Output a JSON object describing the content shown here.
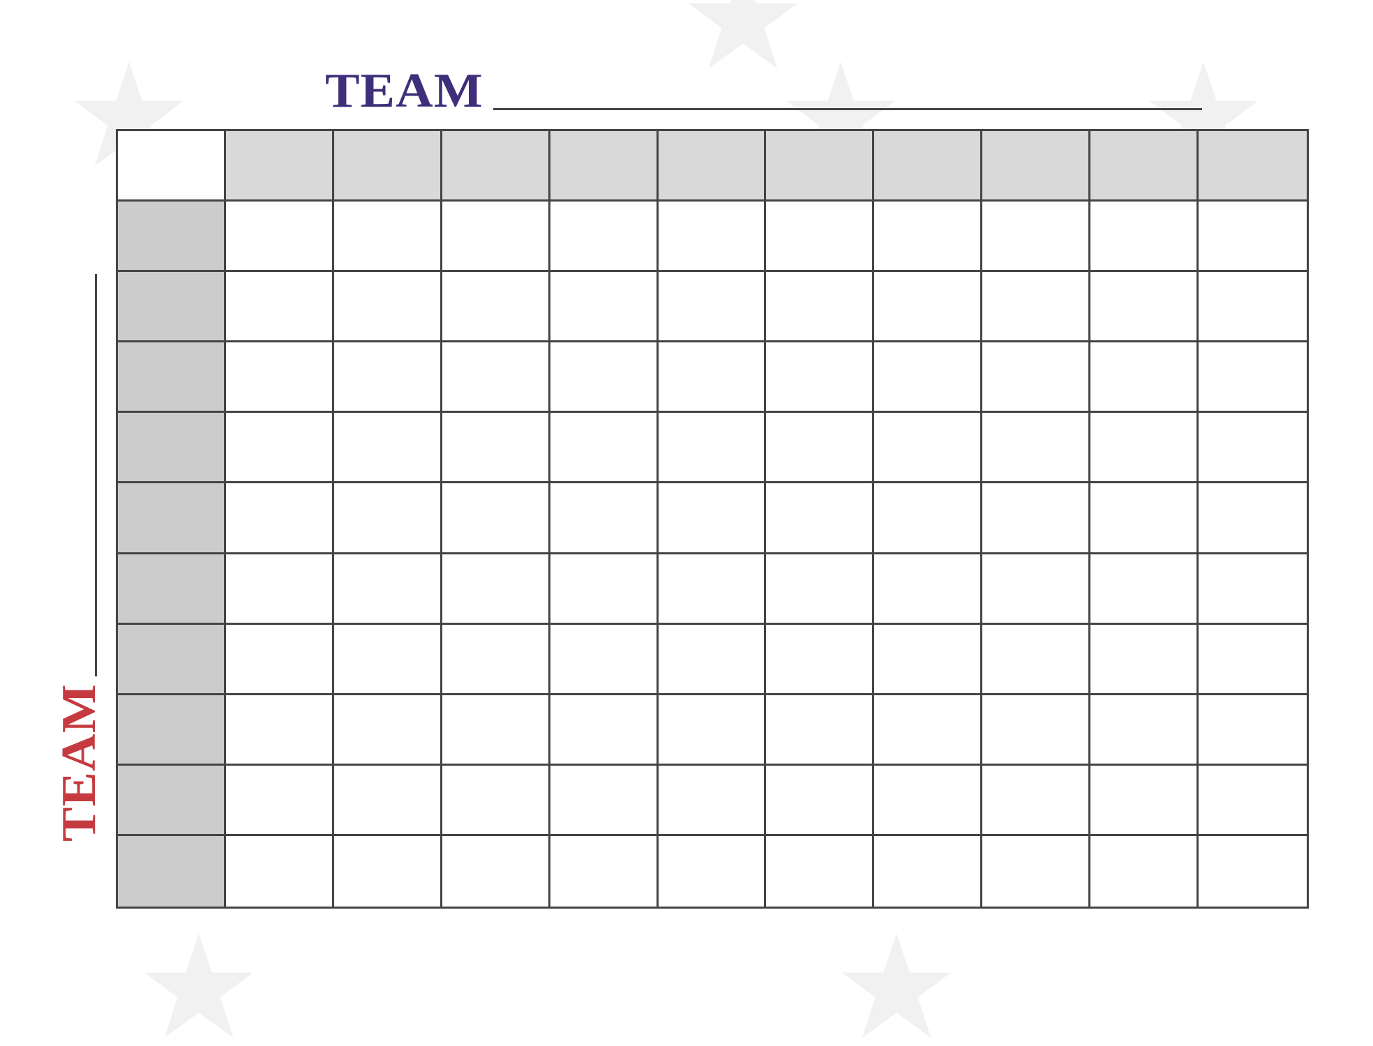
{
  "top_team": {
    "label": "TEAM",
    "color": "#3f2f7a"
  },
  "left_team": {
    "label": "TEAM",
    "color": "#c43a3f"
  },
  "grid": {
    "columns": 10,
    "rows": 10,
    "header_fill": "#d9d9d9",
    "side_fill": "#cccccc",
    "line_color": "#444444"
  },
  "background": {
    "icons": [
      "star-icon",
      "football-icon",
      "helmet-icon"
    ]
  }
}
